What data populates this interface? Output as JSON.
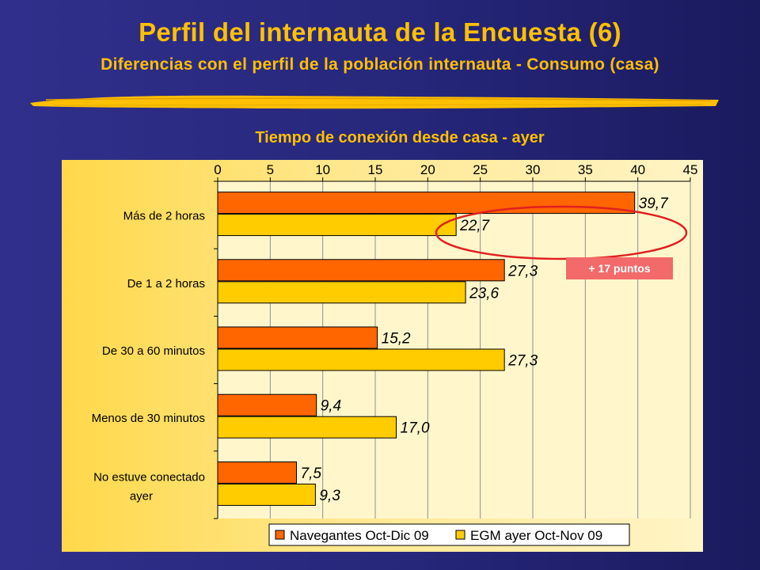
{
  "header": {
    "title": "Perfil del internauta de la Encuesta (6)",
    "subtitle": "Diferencias con el perfil de la población internauta - Consumo (casa)"
  },
  "chart_heading": "Tiempo de conexión desde casa - ayer",
  "annotation": {
    "badge_text": "+ 17 puntos"
  },
  "colors": {
    "series1": "#ff6600",
    "series2": "#ffcc00",
    "accent": "#ffc000",
    "highlight": "#e02020"
  },
  "chart_data": {
    "type": "bar",
    "orientation": "horizontal",
    "title": "Tiempo de conexión desde casa - ayer",
    "xlabel": "",
    "ylabel": "",
    "xlim": [
      0,
      45
    ],
    "xticks": [
      "0",
      "5",
      "10",
      "15",
      "20",
      "25",
      "30",
      "35",
      "40",
      "45"
    ],
    "grid": true,
    "legend_position": "bottom",
    "categories": [
      "Más de 2 horas",
      "De 1 a 2 horas",
      "De 30 a 60 minutos",
      "Menos de 30 minutos",
      "No estuve conectado ayer"
    ],
    "series": [
      {
        "name": "Navegantes Oct-Dic 09",
        "values": [
          39.7,
          27.3,
          15.2,
          9.4,
          7.5
        ],
        "labels": [
          "39,7",
          "27,3",
          "15,2",
          "9,4",
          "7,5"
        ]
      },
      {
        "name": "EGM ayer Oct-Nov 09",
        "values": [
          22.7,
          23.6,
          27.3,
          17.0,
          9.3
        ],
        "labels": [
          "22,7",
          "23,6",
          "27,3",
          "17,0",
          "9,3"
        ]
      }
    ]
  }
}
